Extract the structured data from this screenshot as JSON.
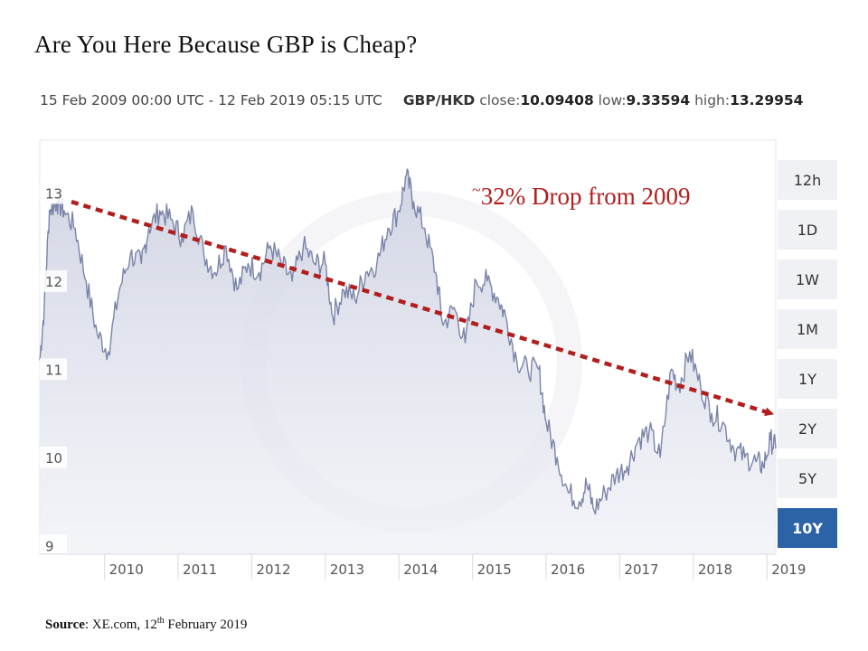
{
  "title": "Are You Here Because GBP is Cheap?",
  "header": {
    "date_range": "15 Feb 2009 00:00 UTC - 12 Feb 2019 05:15 UTC",
    "pair": "GBP/HKD",
    "close_label": "close:",
    "close_value": "10.09408",
    "low_label": "low:",
    "low_value": "9.33594",
    "high_label": "high:",
    "high_value": "13.29954"
  },
  "range_buttons": [
    "12h",
    "1D",
    "1W",
    "1M",
    "1Y",
    "2Y",
    "5Y",
    "10Y"
  ],
  "active_range": "10Y",
  "annotation": {
    "tilde": "~",
    "text": "32% Drop from 2009"
  },
  "source": {
    "label": "Source",
    "text_before_sup": ": XE.com, 12",
    "sup": "th",
    "text_after_sup": " February 2019"
  },
  "colors": {
    "line": "#7a84a8",
    "area": "#cfd3e2",
    "arrow": "#b21e1e",
    "active_button": "#2b63a6"
  },
  "chart_data": {
    "type": "area",
    "x_ticks": [
      "2010",
      "2011",
      "2012",
      "2013",
      "2014",
      "2015",
      "2016",
      "2017",
      "2018",
      "2019"
    ],
    "y_ticks": [
      9,
      10,
      11,
      12,
      13
    ],
    "ylim": [
      8.9,
      13.6
    ],
    "xlim": [
      2009.12,
      2019.12
    ],
    "x": [
      2009.12,
      2009.18,
      2009.25,
      2009.35,
      2009.45,
      2009.6,
      2009.75,
      2009.9,
      2010.05,
      2010.2,
      2010.35,
      2010.5,
      2010.6,
      2010.75,
      2010.9,
      2011.05,
      2011.2,
      2011.35,
      2011.5,
      2011.65,
      2011.8,
      2011.95,
      2012.1,
      2012.25,
      2012.4,
      2012.55,
      2012.7,
      2012.85,
      2013.0,
      2013.1,
      2013.25,
      2013.4,
      2013.55,
      2013.7,
      2013.85,
      2014.0,
      2014.1,
      2014.2,
      2014.35,
      2014.5,
      2014.6,
      2014.75,
      2014.9,
      2015.05,
      2015.2,
      2015.35,
      2015.45,
      2015.6,
      2015.75,
      2015.9,
      2016.0,
      2016.15,
      2016.3,
      2016.45,
      2016.55,
      2016.65,
      2016.8,
      2016.95,
      2017.1,
      2017.25,
      2017.4,
      2017.55,
      2017.7,
      2017.8,
      2017.95,
      2018.1,
      2018.25,
      2018.4,
      2018.55,
      2018.7,
      2018.85,
      2018.95,
      2019.05,
      2019.12
    ],
    "series": [
      {
        "values": [
          11.1,
          11.7,
          12.8,
          12.9,
          12.8,
          12.6,
          12.0,
          11.4,
          11.2,
          11.9,
          12.3,
          12.2,
          12.6,
          12.8,
          12.7,
          12.5,
          12.8,
          12.3,
          12.1,
          12.4,
          11.9,
          12.2,
          12.1,
          12.4,
          12.2,
          12.0,
          12.4,
          12.2,
          12.2,
          11.6,
          11.9,
          11.8,
          12.1,
          12.2,
          12.6,
          12.8,
          13.2,
          12.9,
          12.6,
          12.1,
          11.5,
          11.7,
          11.3,
          12.0,
          12.0,
          11.8,
          11.6,
          11.1,
          11.0,
          11.0,
          10.4,
          10.0,
          9.6,
          9.5,
          9.7,
          9.4,
          9.6,
          9.8,
          9.9,
          10.2,
          10.3,
          10.0,
          11.0,
          10.8,
          11.2,
          10.8,
          10.5,
          10.4,
          10.1,
          10.0,
          9.95,
          9.9,
          10.2,
          10.1
        ]
      }
    ]
  }
}
